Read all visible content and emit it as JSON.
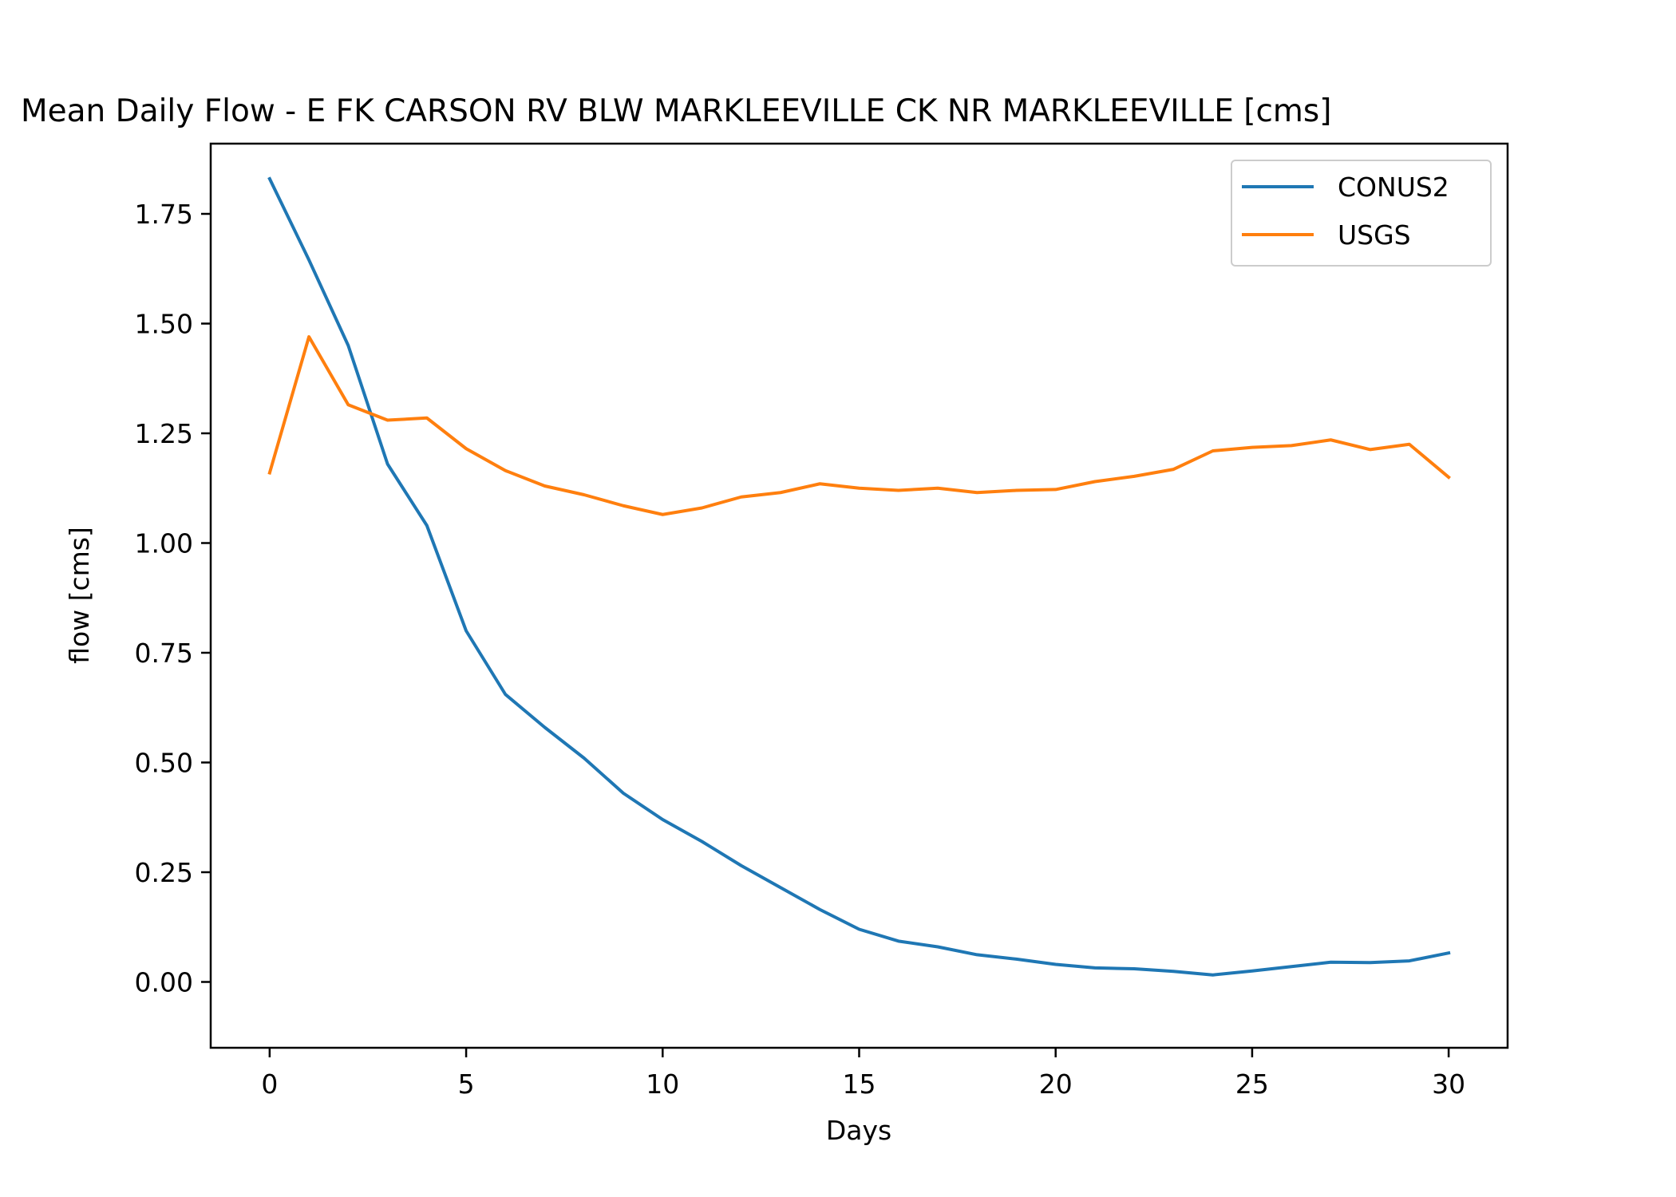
{
  "chart_data": {
    "type": "line",
    "title": "Mean Daily Flow - E FK CARSON RV BLW MARKLEEVILLE CK NR MARKLEEVILLE [cms]",
    "xlabel": "Days",
    "ylabel": "flow [cms]",
    "xlim": [
      -1.5,
      31.5
    ],
    "ylim": [
      -0.15,
      1.91
    ],
    "xticks": [
      0,
      5,
      10,
      15,
      20,
      25,
      30
    ],
    "xtick_labels": [
      "0",
      "5",
      "10",
      "15",
      "20",
      "25",
      "30"
    ],
    "yticks": [
      0.0,
      0.25,
      0.5,
      0.75,
      1.0,
      1.25,
      1.5,
      1.75
    ],
    "ytick_labels": [
      "0.00",
      "0.25",
      "0.50",
      "0.75",
      "1.00",
      "1.25",
      "1.50",
      "1.75"
    ],
    "grid": false,
    "legend_position": "top-right",
    "x": [
      0,
      1,
      2,
      3,
      4,
      5,
      6,
      7,
      8,
      9,
      10,
      11,
      12,
      13,
      14,
      15,
      16,
      17,
      18,
      19,
      20,
      21,
      22,
      23,
      24,
      25,
      26,
      27,
      28,
      29,
      30
    ],
    "series": [
      {
        "name": "CONUS2",
        "color": "#1f77b4",
        "values": [
          1.83,
          1.645,
          1.45,
          1.18,
          1.04,
          0.8,
          0.655,
          0.58,
          0.51,
          0.43,
          0.37,
          0.32,
          0.265,
          0.215,
          0.165,
          0.12,
          0.093,
          0.08,
          0.062,
          0.052,
          0.04,
          0.032,
          0.03,
          0.024,
          0.016,
          0.025,
          0.035,
          0.045,
          0.044,
          0.048,
          0.066
        ]
      },
      {
        "name": "USGS",
        "color": "#ff7f0e",
        "values": [
          1.16,
          1.47,
          1.315,
          1.28,
          1.285,
          1.215,
          1.165,
          1.13,
          1.11,
          1.085,
          1.065,
          1.08,
          1.105,
          1.115,
          1.135,
          1.125,
          1.12,
          1.125,
          1.115,
          1.12,
          1.122,
          1.14,
          1.152,
          1.168,
          1.21,
          1.218,
          1.222,
          1.235,
          1.213,
          1.225,
          1.15
        ]
      }
    ]
  }
}
